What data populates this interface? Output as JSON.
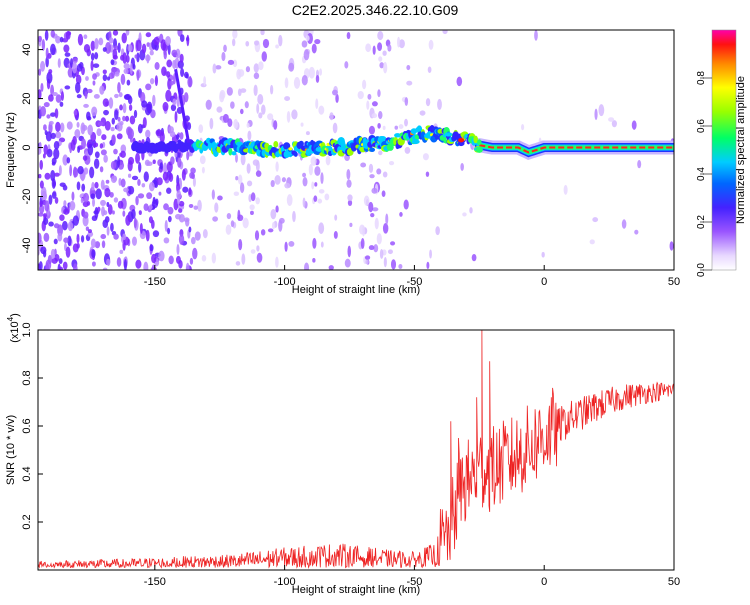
{
  "chart_data": [
    {
      "type": "heatmap",
      "title": "C2E2.2025.346.22.10.G09",
      "xlabel": "Height of straight line (km)",
      "ylabel": "Frequency (Hz)",
      "xlim": [
        -195,
        50
      ],
      "ylim": [
        -50,
        48
      ],
      "xticks": [
        "-150",
        "-100",
        "-50",
        "0",
        "50"
      ],
      "yticks": [
        "40",
        "20",
        "0",
        "-20",
        "-40"
      ],
      "colorbar": {
        "label": "Normalized spectral amplitude",
        "range": [
          0,
          1
        ],
        "ticks": [
          "0.0",
          "0.2",
          "0.4",
          "0.6",
          "0.8"
        ]
      },
      "ridge": {
        "description_points_x": [
          -155,
          -140,
          -120,
          -100,
          -80,
          -60,
          -45,
          -38,
          -30,
          -25,
          -20,
          -10,
          -6,
          0,
          10,
          25,
          50
        ],
        "frequency_hz": [
          0,
          1,
          0,
          -1,
          0,
          2,
          6,
          5,
          3,
          1,
          0,
          0,
          -2,
          0,
          0,
          0,
          0
        ]
      }
    },
    {
      "type": "line",
      "title": "",
      "xlabel": "Height of straight line (km)",
      "ylabel": "SNR (10 * v/v)",
      "multiplier": "(x10",
      "multiplier_exp": "4",
      "multiplier_close": ")",
      "xlim": [
        -195,
        50
      ],
      "ylim": [
        0,
        1.0
      ],
      "xticks": [
        "-150",
        "-100",
        "-50",
        "0",
        "50"
      ],
      "yticks": [
        "1.0",
        "0.8",
        "0.6",
        "0.4",
        "0.2"
      ],
      "series": [
        {
          "color": "#ee2222",
          "envelope_x": [
            -195,
            -160,
            -120,
            -100,
            -90,
            -80,
            -60,
            -50,
            -42,
            -38,
            -35,
            -32,
            -28,
            -25,
            -20,
            -15,
            -10,
            -5,
            0,
            10,
            20,
            30,
            40,
            50
          ],
          "envelope_y": [
            0.02,
            0.025,
            0.035,
            0.05,
            0.055,
            0.06,
            0.045,
            0.04,
            0.06,
            0.12,
            0.22,
            0.35,
            0.38,
            0.42,
            0.42,
            0.45,
            0.48,
            0.52,
            0.56,
            0.63,
            0.68,
            0.72,
            0.74,
            0.75
          ]
        }
      ],
      "spikes": [
        {
          "x": -24,
          "y": 1.0
        },
        {
          "x": -21,
          "y": 0.87
        },
        {
          "x": -26,
          "y": 0.72
        },
        {
          "x": -36,
          "y": 0.62
        },
        {
          "x": -33,
          "y": 0.55
        }
      ]
    }
  ]
}
